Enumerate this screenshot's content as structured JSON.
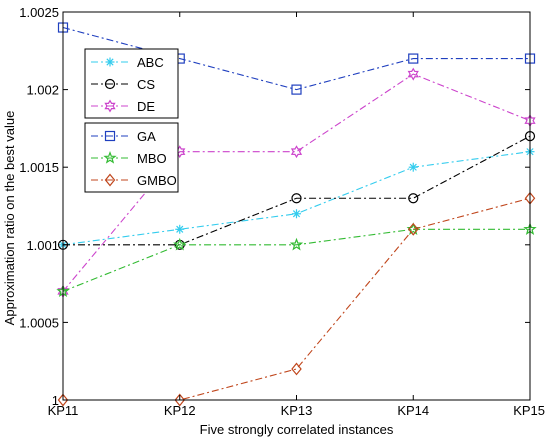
{
  "chart_data": {
    "type": "line",
    "title": "",
    "xlabel": "Five strongly correlated instances",
    "ylabel": "Approximation ratio on the best value",
    "categories": [
      "KP11",
      "KP12",
      "KP13",
      "KP14",
      "KP15"
    ],
    "ylim": [
      1,
      1.0025
    ],
    "yticks": [
      1,
      1.0005,
      1.001,
      1.0015,
      1.002,
      1.0025
    ],
    "ytick_labels": [
      "1",
      "1.0005",
      "1.001",
      "1.0015",
      "1.002",
      "1.0025"
    ],
    "grid": false,
    "series": [
      {
        "name": "ABC",
        "color": "#33ccee",
        "marker": "asterisk",
        "values": [
          1.001,
          1.0011,
          1.0012,
          1.0015,
          1.0016
        ]
      },
      {
        "name": "CS",
        "color": "#000000",
        "marker": "circle",
        "values": [
          1.001,
          1.001,
          1.0013,
          1.0013,
          1.0017
        ]
      },
      {
        "name": "DE",
        "color": "#cc44cc",
        "marker": "hexagram",
        "values": [
          1.0007,
          1.0016,
          1.0016,
          1.0021,
          1.0018
        ]
      },
      {
        "name": "GA",
        "color": "#1f3fbf",
        "marker": "square",
        "values": [
          1.0024,
          1.0022,
          1.002,
          1.0022,
          1.0022
        ]
      },
      {
        "name": "MBO",
        "color": "#33bb33",
        "marker": "pentagram",
        "values": [
          1.0007,
          1.001,
          1.001,
          1.0011,
          1.0011
        ]
      },
      {
        "name": "GMBO",
        "color": "#c0461c",
        "marker": "diamond",
        "values": [
          1,
          1,
          1.0002,
          1.0011,
          1.0013
        ]
      }
    ],
    "legend": [
      {
        "position": "upper-left",
        "entries": [
          "ABC",
          "CS",
          "DE"
        ]
      },
      {
        "position": "middle-left",
        "entries": [
          "GA",
          "MBO",
          "GMBO"
        ]
      }
    ]
  }
}
